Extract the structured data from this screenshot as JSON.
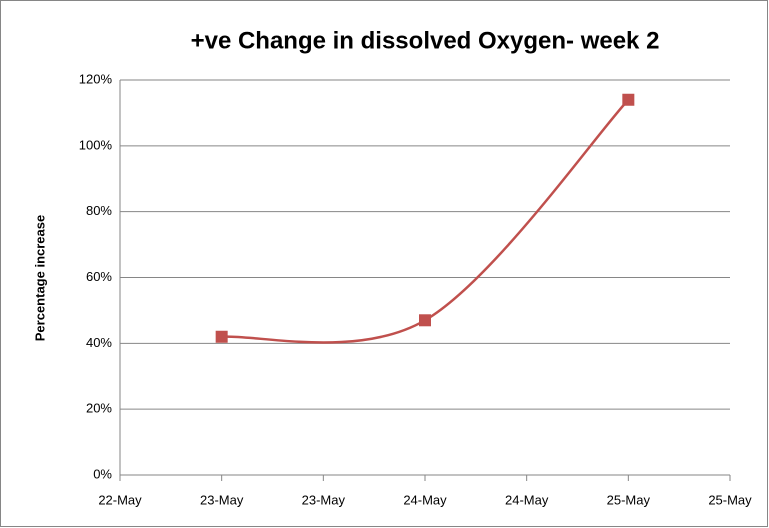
{
  "chart_data": {
    "type": "line",
    "title": "+ve Change in dissolved Oxygen- week 2",
    "y_label": "Percentage increase",
    "x": [
      23,
      24,
      25
    ],
    "values": [
      42,
      47,
      114
    ],
    "color": "#c0504d",
    "xlim": [
      22.5,
      25.5
    ],
    "xticks": [
      {
        "value": 22.5,
        "label": "22-May"
      },
      {
        "value": 23,
        "label": "23-May"
      },
      {
        "value": 23.5,
        "label": "23-May"
      },
      {
        "value": 24,
        "label": "24-May"
      },
      {
        "value": 24.5,
        "label": "24-May"
      },
      {
        "value": 25,
        "label": "25-May"
      },
      {
        "value": 25.5,
        "label": "25-May"
      }
    ],
    "ylim": [
      0,
      120
    ],
    "yticks": [
      {
        "value": 0,
        "label": "0%"
      },
      {
        "value": 20,
        "label": "20%"
      },
      {
        "value": 40,
        "label": "40%"
      },
      {
        "value": 60,
        "label": "60%"
      },
      {
        "value": 80,
        "label": "80%"
      },
      {
        "value": 100,
        "label": "100%"
      },
      {
        "value": 120,
        "label": "120%"
      }
    ],
    "grid": true,
    "smooth": true,
    "marker": "square"
  }
}
